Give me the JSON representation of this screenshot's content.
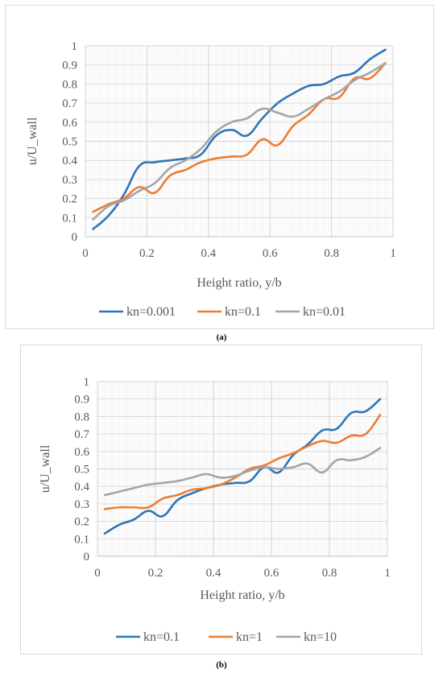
{
  "panels": [
    {
      "caption": "(a)",
      "chart_data": {
        "type": "line",
        "title": "",
        "xlabel": "Height ratio, y/b",
        "ylabel": "u/U_wall",
        "xlim": [
          0,
          1
        ],
        "ylim": [
          0,
          1
        ],
        "x_ticks": [
          "0",
          "0.2",
          "0.4",
          "0.6",
          "0.8",
          "1"
        ],
        "y_ticks": [
          "0",
          "0.1",
          "0.2",
          "0.3",
          "0.4",
          "0.5",
          "0.6",
          "0.7",
          "0.8",
          "0.9",
          "1"
        ],
        "grid": true,
        "smooth": true,
        "legend_position": "bottom",
        "series": [
          {
            "name": "kn=0.001",
            "color": "#2E75B6",
            "x": [
              0.025,
              0.075,
              0.125,
              0.175,
              0.225,
              0.275,
              0.325,
              0.375,
              0.425,
              0.475,
              0.525,
              0.575,
              0.625,
              0.675,
              0.725,
              0.775,
              0.825,
              0.875,
              0.925,
              0.975
            ],
            "y": [
              0.04,
              0.11,
              0.22,
              0.37,
              0.39,
              0.4,
              0.41,
              0.43,
              0.53,
              0.56,
              0.53,
              0.62,
              0.7,
              0.75,
              0.79,
              0.8,
              0.84,
              0.86,
              0.93,
              0.98
            ]
          },
          {
            "name": "kn=0.1",
            "color": "#ED7D31",
            "x": [
              0.025,
              0.075,
              0.125,
              0.175,
              0.225,
              0.275,
              0.325,
              0.375,
              0.425,
              0.475,
              0.525,
              0.575,
              0.625,
              0.675,
              0.725,
              0.775,
              0.825,
              0.875,
              0.925,
              0.975
            ],
            "y": [
              0.13,
              0.17,
              0.2,
              0.26,
              0.23,
              0.32,
              0.35,
              0.39,
              0.41,
              0.42,
              0.43,
              0.51,
              0.48,
              0.58,
              0.64,
              0.72,
              0.73,
              0.83,
              0.83,
              0.91
            ]
          },
          {
            "name": "kn=0.01",
            "color": "#A5A5A5",
            "x": [
              0.025,
              0.075,
              0.125,
              0.175,
              0.225,
              0.275,
              0.325,
              0.375,
              0.425,
              0.475,
              0.525,
              0.575,
              0.625,
              0.675,
              0.725,
              0.775,
              0.825,
              0.875,
              0.925,
              0.975
            ],
            "y": [
              0.09,
              0.16,
              0.19,
              0.24,
              0.28,
              0.36,
              0.4,
              0.46,
              0.55,
              0.6,
              0.62,
              0.67,
              0.65,
              0.63,
              0.67,
              0.72,
              0.76,
              0.82,
              0.86,
              0.91
            ]
          }
        ]
      }
    },
    {
      "caption": "(b)",
      "chart_data": {
        "type": "line",
        "title": "",
        "xlabel": "Height ratio, y/b",
        "ylabel": "u/U_wall",
        "xlim": [
          0,
          1
        ],
        "ylim": [
          0,
          1
        ],
        "x_ticks": [
          "0",
          "0.2",
          "0.4",
          "0.6",
          "0.8",
          "1"
        ],
        "y_ticks": [
          "0",
          "0.1",
          "0.2",
          "0.3",
          "0.4",
          "0.5",
          "0.6",
          "0.7",
          "0.8",
          "0.9",
          "1"
        ],
        "grid": true,
        "smooth": true,
        "legend_position": "bottom",
        "series": [
          {
            "name": "kn=0.1",
            "color": "#2E75B6",
            "x": [
              0.025,
              0.075,
              0.125,
              0.175,
              0.225,
              0.275,
              0.325,
              0.375,
              0.425,
              0.475,
              0.525,
              0.575,
              0.625,
              0.675,
              0.725,
              0.775,
              0.825,
              0.875,
              0.925,
              0.975
            ],
            "y": [
              0.13,
              0.18,
              0.21,
              0.26,
              0.23,
              0.32,
              0.36,
              0.39,
              0.41,
              0.42,
              0.43,
              0.51,
              0.48,
              0.58,
              0.64,
              0.72,
              0.73,
              0.82,
              0.83,
              0.9
            ]
          },
          {
            "name": "kn=1",
            "color": "#ED7D31",
            "x": [
              0.025,
              0.075,
              0.125,
              0.175,
              0.225,
              0.275,
              0.325,
              0.375,
              0.425,
              0.475,
              0.525,
              0.575,
              0.625,
              0.675,
              0.725,
              0.775,
              0.825,
              0.875,
              0.925,
              0.975
            ],
            "y": [
              0.27,
              0.28,
              0.28,
              0.28,
              0.33,
              0.35,
              0.38,
              0.39,
              0.41,
              0.45,
              0.5,
              0.52,
              0.56,
              0.59,
              0.63,
              0.66,
              0.65,
              0.69,
              0.7,
              0.81
            ]
          },
          {
            "name": "kn=10",
            "color": "#A5A5A5",
            "x": [
              0.025,
              0.075,
              0.125,
              0.175,
              0.225,
              0.275,
              0.325,
              0.375,
              0.425,
              0.475,
              0.525,
              0.575,
              0.625,
              0.675,
              0.725,
              0.775,
              0.825,
              0.875,
              0.925,
              0.975
            ],
            "y": [
              0.35,
              0.37,
              0.39,
              0.41,
              0.42,
              0.43,
              0.45,
              0.47,
              0.45,
              0.46,
              0.49,
              0.51,
              0.5,
              0.51,
              0.53,
              0.48,
              0.55,
              0.55,
              0.57,
              0.62
            ]
          }
        ]
      }
    }
  ]
}
